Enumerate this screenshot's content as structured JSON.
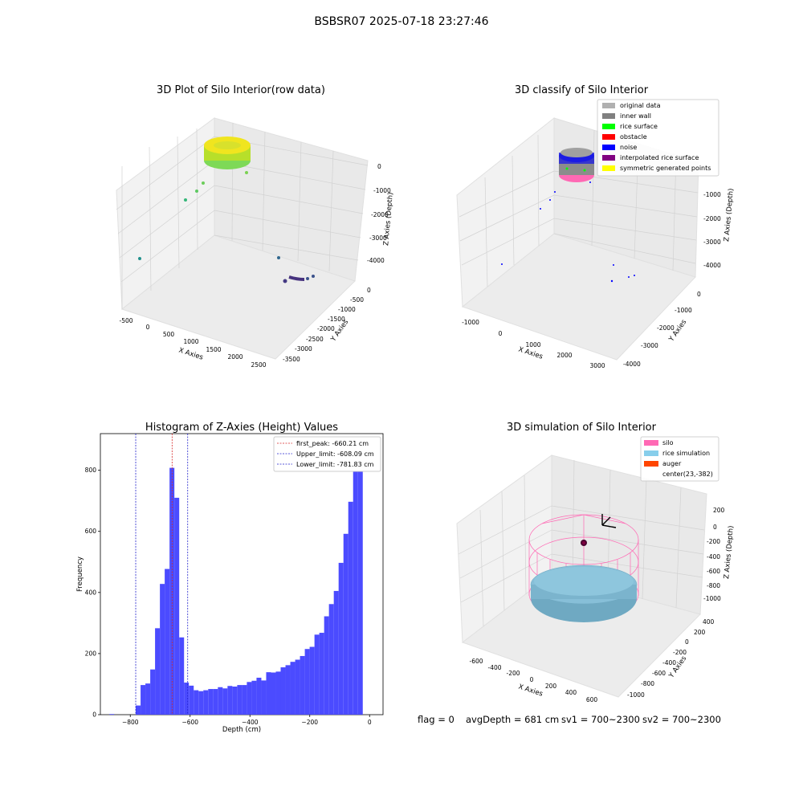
{
  "figure": {
    "suptitle": "BSBSR07 2025-07-18 23:27:46",
    "status": {
      "flag": "flag = 0",
      "avg_depth": "avgDepth = 681 cm",
      "sv1": "sv1 = 700~2300",
      "sv2": "sv2 = 700~2300"
    }
  },
  "colors": {
    "histogram_bar": "#4b4bff",
    "first_peak_line": "#d62728",
    "limit_line": "#2222cc",
    "pane_gray": "#f2f2f2",
    "grid": "#d0d0d0",
    "silo_wire": "#ff69b4",
    "rice_fill": "#87bfd8",
    "auger": "#ff4500"
  },
  "chart_data": [
    {
      "type": "scatter",
      "projection": "3d",
      "title": "3D Plot of Silo Interior(row data)",
      "xlabel": "X Axies",
      "ylabel": "Y Axies",
      "zlabel": "Z Axies (Depth)",
      "x_ticks": [
        "-500",
        "0",
        "500",
        "1000",
        "1500",
        "2000",
        "2500"
      ],
      "y_ticks": [
        "0",
        "-500",
        "-1000",
        "-1500",
        "-2000",
        "-2500",
        "-3000",
        "-3500"
      ],
      "z_ticks": [
        "0",
        "-1000",
        "-2000",
        "-3000",
        "-4000"
      ],
      "colormap": "viridis",
      "points_note": "dense ring of points near depth 0 plus sparse outliers"
    },
    {
      "type": "scatter",
      "projection": "3d",
      "title": "3D classify of Silo Interior",
      "xlabel": "X Axies",
      "ylabel": "Y Axies",
      "zlabel": "Z Axies (Depth)",
      "x_ticks": [
        "-1000",
        "0",
        "1000",
        "2000",
        "3000"
      ],
      "y_ticks": [
        "0",
        "-1000",
        "-2000",
        "-3000",
        "-4000"
      ],
      "z_ticks": [
        "-1000",
        "-2000",
        "-3000",
        "-4000"
      ],
      "legend_position": "top-right",
      "legend": [
        {
          "label": "original data",
          "color": "#b0b0b0"
        },
        {
          "label": "inner wall",
          "color": "#808080"
        },
        {
          "label": "rice surface",
          "color": "#00ff00"
        },
        {
          "label": "obstacle",
          "color": "#ff0000"
        },
        {
          "label": "noise",
          "color": "#0000ff"
        },
        {
          "label": "interpolated rice surface",
          "color": "#800080"
        },
        {
          "label": "symmetric generated points",
          "color": "#ffff00"
        }
      ]
    },
    {
      "type": "bar",
      "title": "Histogram of Z-Axies (Height) Values",
      "xlabel": "Depth (cm)",
      "ylabel": "Frequency",
      "xlim": [
        -900,
        45
      ],
      "ylim": [
        0,
        920
      ],
      "x_ticks": [
        -800,
        -600,
        -400,
        -200,
        0
      ],
      "x_tick_labels": [
        "−800",
        "−600",
        "−400",
        "−200",
        "0"
      ],
      "y_ticks": [
        0,
        200,
        400,
        600,
        800
      ],
      "bin_width": 16.15,
      "bins": [
        [
          -870,
          2
        ],
        [
          -854,
          0
        ],
        [
          -838,
          0
        ],
        [
          -822,
          0
        ],
        [
          -806,
          0
        ],
        [
          -790,
          0
        ],
        [
          -781.8,
          30
        ],
        [
          -765.6,
          97
        ],
        [
          -749.5,
          102
        ],
        [
          -733.3,
          148
        ],
        [
          -717.2,
          283
        ],
        [
          -701,
          428
        ],
        [
          -684.9,
          477
        ],
        [
          -668.7,
          808
        ],
        [
          -652.6,
          710
        ],
        [
          -636.4,
          253
        ],
        [
          -620.3,
          105
        ],
        [
          -604.1,
          95
        ],
        [
          -588,
          80
        ],
        [
          -571.8,
          77
        ],
        [
          -555.7,
          80
        ],
        [
          -539.5,
          84
        ],
        [
          -523.4,
          84
        ],
        [
          -507.2,
          90
        ],
        [
          -491.1,
          86
        ],
        [
          -474.9,
          94
        ],
        [
          -458.8,
          92
        ],
        [
          -442.6,
          97
        ],
        [
          -426.5,
          97
        ],
        [
          -410.3,
          107
        ],
        [
          -394.2,
          111
        ],
        [
          -378,
          121
        ],
        [
          -361.9,
          112
        ],
        [
          -345.7,
          139
        ],
        [
          -329.6,
          138
        ],
        [
          -313.4,
          141
        ],
        [
          -297.3,
          155
        ],
        [
          -281.1,
          162
        ],
        [
          -265,
          173
        ],
        [
          -248.8,
          180
        ],
        [
          -232.7,
          192
        ],
        [
          -216.5,
          215
        ],
        [
          -200.4,
          222
        ],
        [
          -184.2,
          262
        ],
        [
          -168.1,
          268
        ],
        [
          -151.9,
          322
        ],
        [
          -135.8,
          362
        ],
        [
          -119.6,
          405
        ],
        [
          -103.5,
          497
        ],
        [
          -87.3,
          592
        ],
        [
          -71.2,
          697
        ],
        [
          -55,
          855
        ],
        [
          -38.9,
          875
        ]
      ],
      "vlines": [
        {
          "name": "first_peak: -660.21 cm",
          "x": -660.21,
          "color": "#d62728"
        },
        {
          "name": "Upper_limit: -608.09 cm",
          "x": -608.09,
          "color": "#2222cc"
        },
        {
          "name": "Lower_limit: -781.83 cm",
          "x": -781.83,
          "color": "#2222cc"
        }
      ],
      "legend_position": "top-right"
    },
    {
      "type": "scatter",
      "projection": "3d",
      "title": "3D simulation of Silo Interior",
      "xlabel": "X Axies",
      "ylabel": "Y Axies",
      "zlabel": "Z Axies (Depth)",
      "x_ticks": [
        "-600",
        "-400",
        "-200",
        "0",
        "200",
        "400",
        "600"
      ],
      "y_ticks": [
        "400",
        "200",
        "0",
        "-200",
        "-400",
        "-600",
        "-800",
        "-1000"
      ],
      "z_ticks": [
        "200",
        "0",
        "-200",
        "-400",
        "-600",
        "-800",
        "-1000"
      ],
      "legend_position": "top-right",
      "legend": [
        {
          "label": "silo",
          "color": "#ff69b4"
        },
        {
          "label": "rice simulation",
          "color": "#87ceeb"
        },
        {
          "label": "auger",
          "color": "#ff4500"
        },
        {
          "label": "center(23,-382)",
          "color": ""
        }
      ]
    }
  ]
}
